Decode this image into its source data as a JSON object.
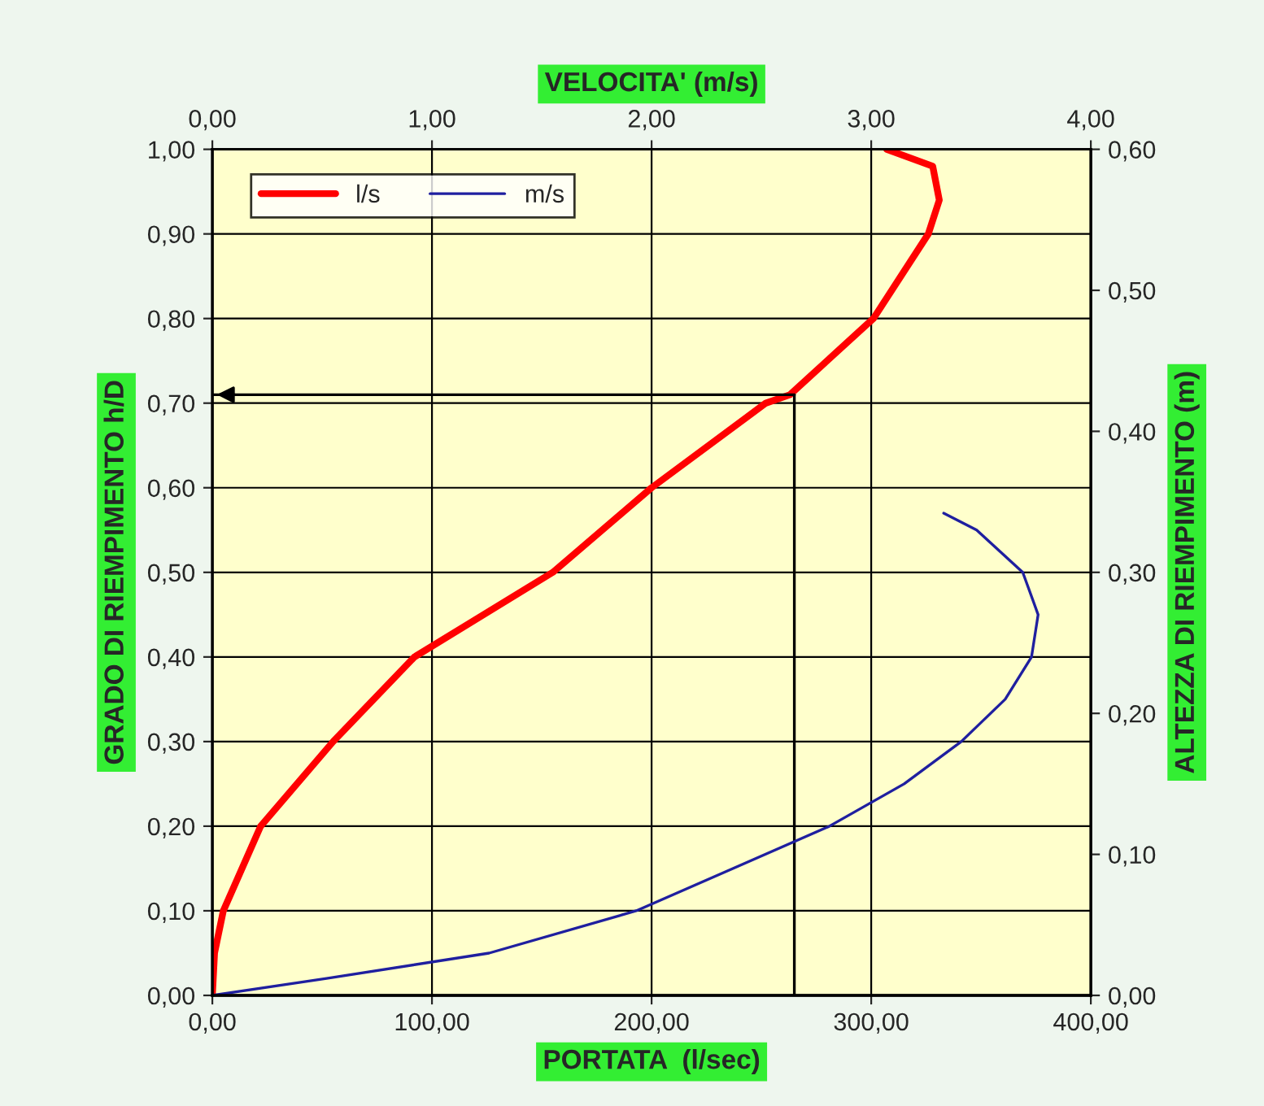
{
  "chart_data": {
    "type": "line",
    "xlabel": "PORTATA  (l/sec)",
    "x2label": "VELOCITA' (m/s)",
    "ylabel": "GRADO DI RIEMPIMENTO h/D",
    "y2label": "ALTEZZA DI RIEMPIMENTO (m)",
    "series": [
      {
        "name": "l/s",
        "color": "#ff0000",
        "x": [
          0,
          1,
          5,
          22,
          55,
          92,
          155,
          200,
          252,
          263,
          301,
          326,
          331,
          328,
          307
        ],
        "values": [
          0,
          0.05,
          0.1,
          0.2,
          0.3,
          0.4,
          0.5,
          0.6,
          0.7,
          0.71,
          0.8,
          0.9,
          0.94,
          0.98,
          1.0
        ]
      },
      {
        "name": "m/s",
        "color": "#1f1f9f",
        "axis": "x2",
        "x": [
          0,
          0.52,
          1.26,
          1.93,
          2.37,
          2.81,
          3.15,
          3.41,
          3.61,
          3.73,
          3.76,
          3.69,
          3.48,
          3.33
        ],
        "values": [
          0,
          0.02,
          0.05,
          0.1,
          0.15,
          0.2,
          0.25,
          0.3,
          0.35,
          0.4,
          0.45,
          0.5,
          0.55,
          0.57
        ]
      }
    ],
    "xlim": [
      0,
      400
    ],
    "xticks": [
      {
        "value": 0,
        "label": "0,00"
      },
      {
        "value": 100,
        "label": "100,00"
      },
      {
        "value": 200,
        "label": "200,00"
      },
      {
        "value": 300,
        "label": "300,00"
      },
      {
        "value": 400,
        "label": "400,00"
      }
    ],
    "x2lim": [
      0,
      4
    ],
    "x2ticks": [
      {
        "value": 0,
        "label": "0,00"
      },
      {
        "value": 1,
        "label": "1,00"
      },
      {
        "value": 2,
        "label": "2,00"
      },
      {
        "value": 3,
        "label": "3,00"
      },
      {
        "value": 4,
        "label": "4,00"
      }
    ],
    "ylim": [
      0,
      1
    ],
    "yticks": [
      {
        "value": 0,
        "label": "0,00"
      },
      {
        "value": 0.1,
        "label": "0,10"
      },
      {
        "value": 0.2,
        "label": "0,20"
      },
      {
        "value": 0.3,
        "label": "0,30"
      },
      {
        "value": 0.4,
        "label": "0,40"
      },
      {
        "value": 0.5,
        "label": "0,50"
      },
      {
        "value": 0.6,
        "label": "0,60"
      },
      {
        "value": 0.7,
        "label": "0,70"
      },
      {
        "value": 0.8,
        "label": "0,80"
      },
      {
        "value": 0.9,
        "label": "0,90"
      },
      {
        "value": 1.0,
        "label": "1,00"
      }
    ],
    "y2lim": [
      0,
      0.6
    ],
    "y2ticks": [
      {
        "value": 0,
        "label": "0,00"
      },
      {
        "value": 0.1,
        "label": "0,10"
      },
      {
        "value": 0.2,
        "label": "0,20"
      },
      {
        "value": 0.3,
        "label": "0,30"
      },
      {
        "value": 0.4,
        "label": "0,40"
      },
      {
        "value": 0.5,
        "label": "0,50"
      },
      {
        "value": 0.6,
        "label": "0,60"
      }
    ],
    "ref_lines": [
      {
        "axis": "y",
        "value": 0.71,
        "color": "#000000"
      },
      {
        "axis": "x",
        "value": 265,
        "color": "#000000"
      }
    ],
    "grid": true,
    "legend": "top left",
    "marker": "none",
    "line_style": "solid"
  }
}
